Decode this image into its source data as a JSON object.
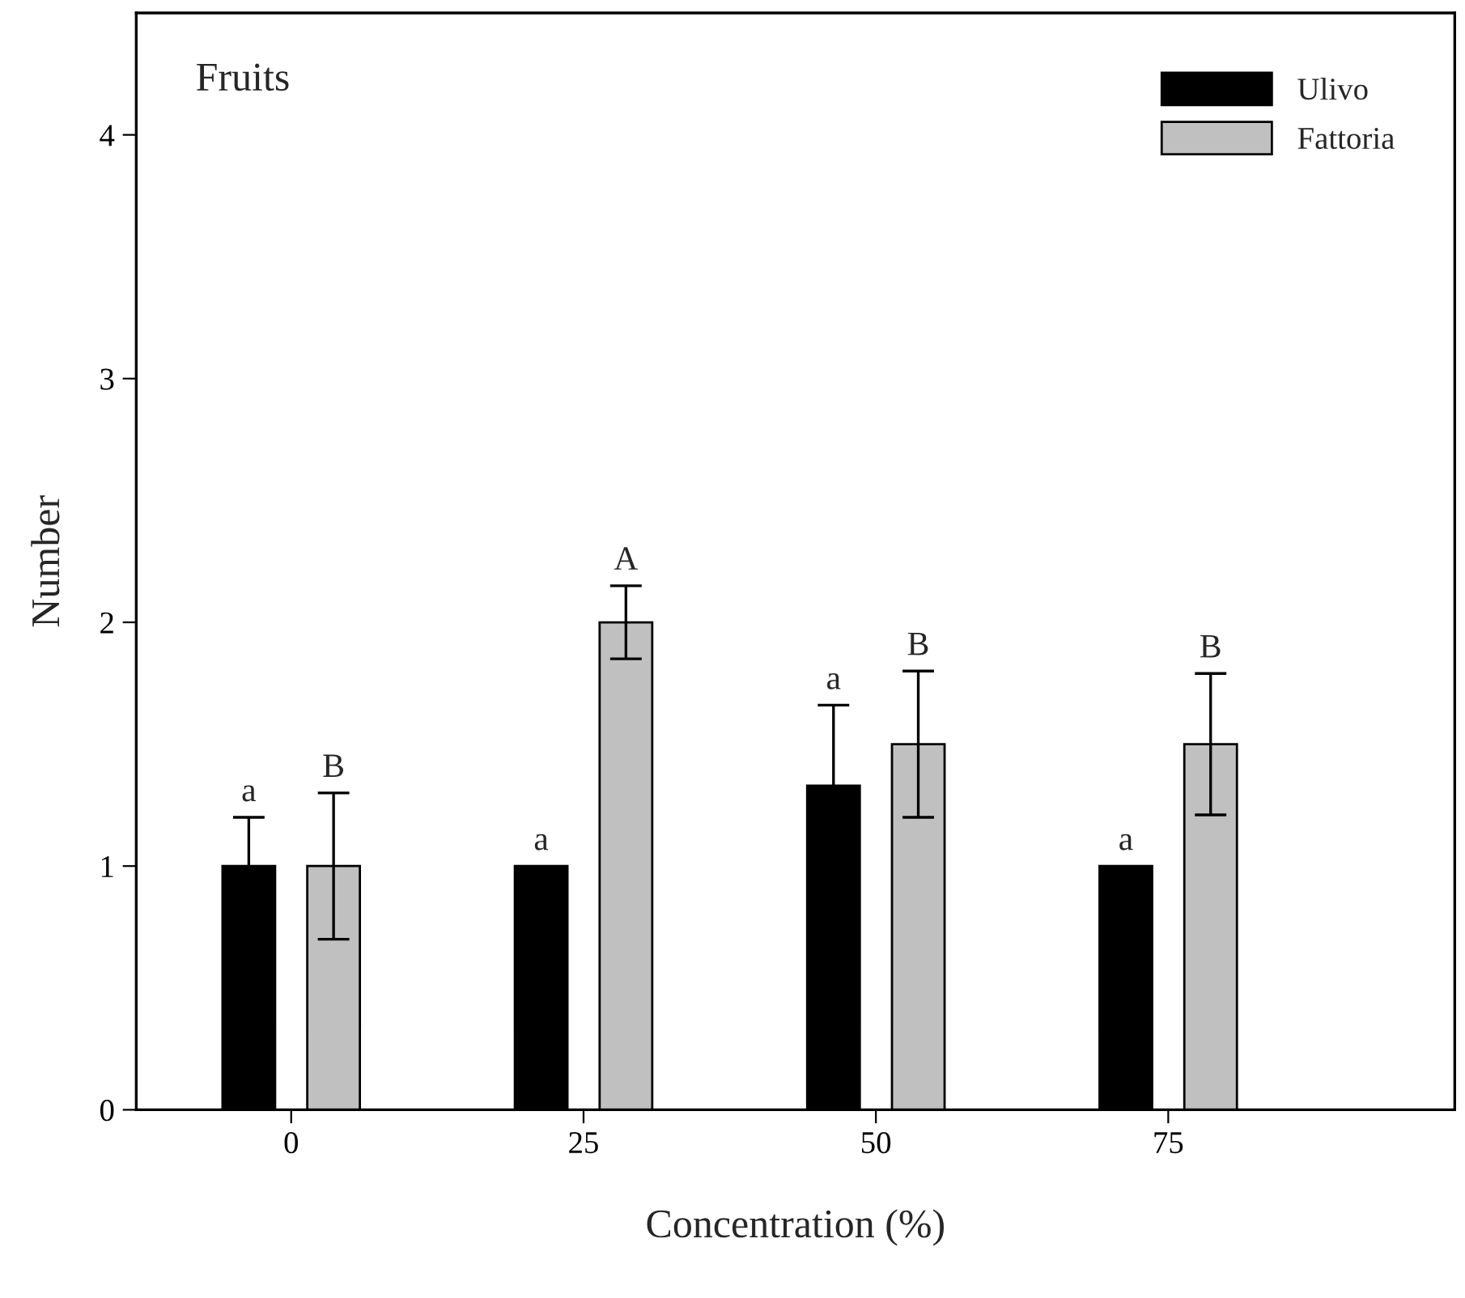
{
  "chart_data": {
    "type": "bar",
    "title": "Fruits",
    "xlabel": "Concentration (%)",
    "ylabel": "Number",
    "categories": [
      "0",
      "25",
      "50",
      "75"
    ],
    "series": [
      {
        "name": "Ulivo",
        "color": "#000000",
        "values": [
          1,
          1,
          1.33,
          1
        ],
        "errors": [
          0.2,
          null,
          0.33,
          null
        ],
        "value_labels": [
          "a",
          "a",
          "a",
          "a"
        ]
      },
      {
        "name": "Fattoria",
        "color": "#c0c0c0",
        "values": [
          1,
          2,
          1.5,
          1.5
        ],
        "errors": [
          0.3,
          0.15,
          0.3,
          0.29
        ],
        "value_labels": [
          "B",
          "A",
          "B",
          "B"
        ]
      }
    ],
    "ylim": [
      0,
      4.5
    ],
    "yticks": [
      0,
      1,
      2,
      3,
      4
    ],
    "grid": false,
    "legend": "top right"
  }
}
